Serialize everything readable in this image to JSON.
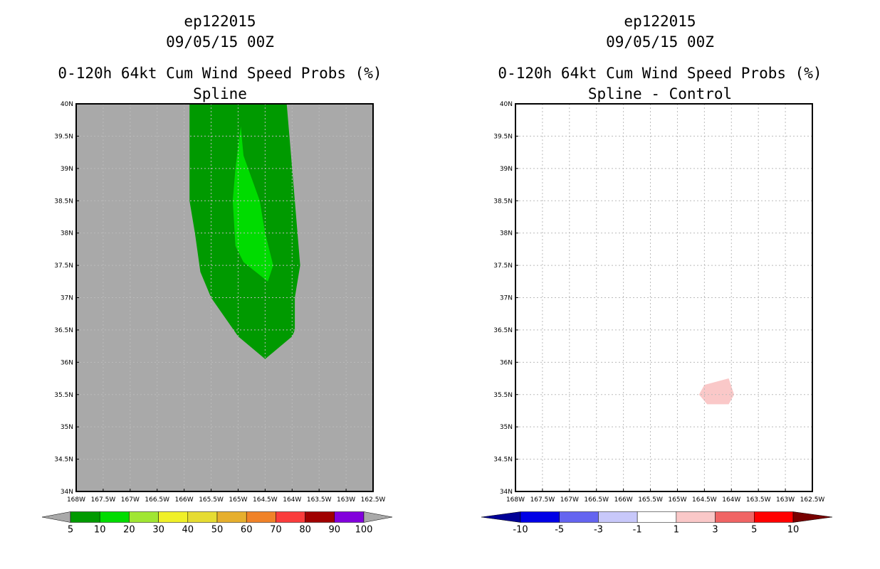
{
  "chart_data": [
    {
      "type": "filled-contour-map",
      "storm_id": "ep122015",
      "datetime": "09/05/15 00Z",
      "title": "0-120h 64kt Cum Wind Speed Probs (%)",
      "subtitle": "Spline",
      "x_ticks": [
        "168W",
        "167.5W",
        "167W",
        "166.5W",
        "166W",
        "165.5W",
        "165W",
        "164.5W",
        "164W",
        "163.5W",
        "163W",
        "162.5W"
      ],
      "y_ticks": [
        "34N",
        "34.5N",
        "35N",
        "35.5N",
        "36N",
        "36.5N",
        "37N",
        "37.5N",
        "38N",
        "38.5N",
        "39N",
        "39.5N",
        "40N"
      ],
      "xlim": [
        -168,
        -162.5
      ],
      "ylim": [
        34,
        40
      ],
      "background_color": "#a9a9a9",
      "grid": true,
      "regions": [
        {
          "level": "5-10",
          "color": "#009a00",
          "polygon": [
            [
              -165.9,
              40
            ],
            [
              -165.9,
              38.5
            ],
            [
              -165.8,
              38
            ],
            [
              -165.7,
              37.4
            ],
            [
              -165.5,
              37
            ],
            [
              -165,
              36.4
            ],
            [
              -164.5,
              36.05
            ],
            [
              -164,
              36.4
            ],
            [
              -163.95,
              36.5
            ],
            [
              -163.95,
              37
            ],
            [
              -163.85,
              37.5
            ],
            [
              -163.95,
              38.5
            ],
            [
              -164.1,
              40
            ]
          ]
        },
        {
          "level": "10-20",
          "color": "#00dc00",
          "polygon": [
            [
              -164.95,
              39.65
            ],
            [
              -164.9,
              39.2
            ],
            [
              -164.75,
              38.85
            ],
            [
              -164.6,
              38.5
            ],
            [
              -164.5,
              38
            ],
            [
              -164.35,
              37.5
            ],
            [
              -164.45,
              37.25
            ],
            [
              -164.9,
              37.55
            ],
            [
              -165.05,
              37.8
            ],
            [
              -165.1,
              38.5
            ],
            [
              -165.05,
              39
            ]
          ]
        }
      ],
      "colorbar": {
        "labels": [
          "5",
          "10",
          "20",
          "30",
          "40",
          "50",
          "60",
          "70",
          "80",
          "90",
          "100"
        ],
        "colors": [
          "#009a00",
          "#00dc00",
          "#a0e632",
          "#f0f028",
          "#e6dc32",
          "#e6af2d",
          "#f08228",
          "#fa3c3c",
          "#a00000",
          "#8200dc"
        ],
        "end_colors": [
          "#a9a9a9",
          "#a9a9a9"
        ]
      }
    },
    {
      "type": "filled-contour-map",
      "storm_id": "ep122015",
      "datetime": "09/05/15 00Z",
      "title": "0-120h 64kt Cum Wind Speed Probs (%)",
      "subtitle": "Spline - Control",
      "x_ticks": [
        "168W",
        "167.5W",
        "167W",
        "166.5W",
        "166W",
        "165.5W",
        "165W",
        "164.5W",
        "164W",
        "163.5W",
        "163W",
        "162.5W"
      ],
      "y_ticks": [
        "34N",
        "34.5N",
        "35N",
        "35.5N",
        "36N",
        "36.5N",
        "37N",
        "37.5N",
        "38N",
        "38.5N",
        "39N",
        "39.5N",
        "40N"
      ],
      "xlim": [
        -168,
        -162.5
      ],
      "ylim": [
        34,
        40
      ],
      "background_color": "#ffffff",
      "grid": true,
      "regions": [
        {
          "level": "1-3",
          "color": "#fac8c8",
          "polygon": [
            [
              -164.6,
              35.5
            ],
            [
              -164.45,
              35.35
            ],
            [
              -164.05,
              35.35
            ],
            [
              -163.95,
              35.5
            ],
            [
              -164.05,
              35.75
            ],
            [
              -164.5,
              35.65
            ]
          ]
        }
      ],
      "colorbar": {
        "labels": [
          "-10",
          "-5",
          "-3",
          "-1",
          "1",
          "3",
          "5",
          "10"
        ],
        "colors": [
          "#0000e6",
          "#6464f0",
          "#c8c8fa",
          "#ffffff",
          "#fac8c8",
          "#f06464",
          "#ff0000"
        ],
        "end_colors": [
          "#000096",
          "#780000"
        ]
      }
    }
  ]
}
